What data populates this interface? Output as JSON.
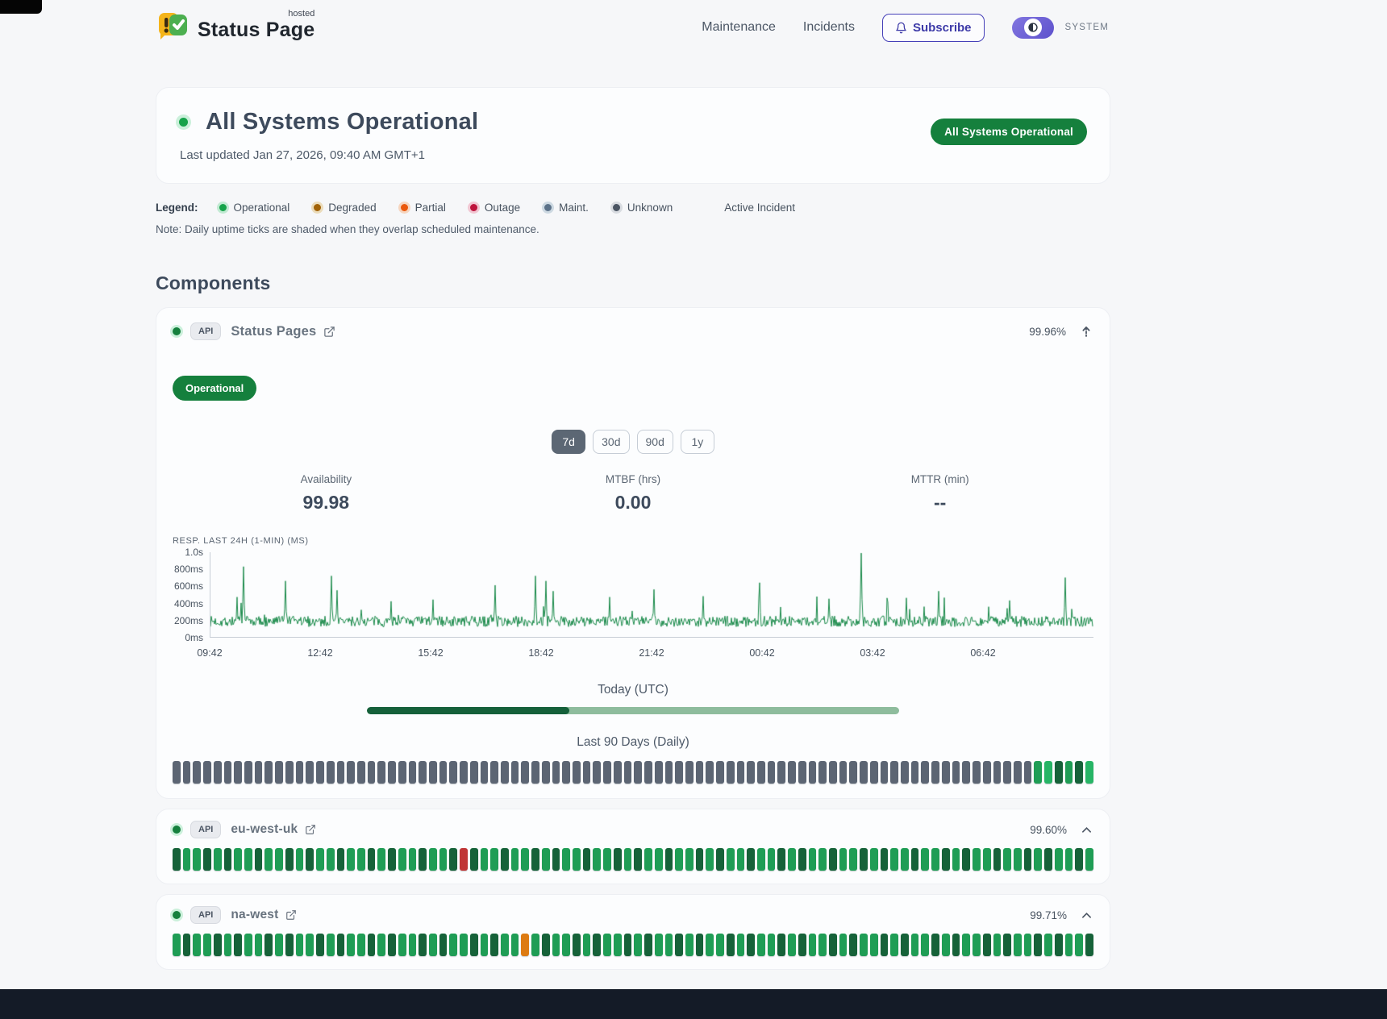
{
  "header": {
    "logo": {
      "brand": "Status Page",
      "superscript": "hosted"
    },
    "nav": [
      {
        "label": "Maintenance"
      },
      {
        "label": "Incidents"
      }
    ],
    "subscribe_label": "Subscribe",
    "theme_toggle_label": "SYSTEM"
  },
  "hero": {
    "title": "All Systems Operational",
    "last_updated": "Last updated Jan 27, 2026, 09:40 AM GMT+1",
    "badge": "All Systems Operational",
    "status_color": "#15803d"
  },
  "legend": {
    "label": "Legend:",
    "items": [
      {
        "label": "Operational",
        "color": "#16a34a",
        "ring": "rgba(34,197,94,.25)"
      },
      {
        "label": "Degraded",
        "color": "#a16207",
        "ring": "rgba(202,138,4,.25)"
      },
      {
        "label": "Partial",
        "color": "#ea580c",
        "ring": "rgba(249,115,22,.25)"
      },
      {
        "label": "Outage",
        "color": "#be123c",
        "ring": "rgba(225,29,72,.22)"
      },
      {
        "label": "Maint.",
        "color": "#5c7289",
        "ring": "rgba(100,140,170,.28)"
      },
      {
        "label": "Unknown",
        "color": "#4b5563",
        "ring": "rgba(107,114,128,.2)"
      }
    ],
    "active_incident_label": "Active Incident",
    "note": "Note: Daily uptime ticks are shaded when they overlap scheduled maintenance."
  },
  "components": {
    "heading": "Components",
    "expanded": {
      "type_badge": "API",
      "name": "Status Pages",
      "uptime_pct": "99.96%",
      "status_badge": "Operational",
      "ranges": [
        "7d",
        "30d",
        "90d",
        "1y"
      ],
      "active_range": "7d",
      "stats": [
        {
          "label": "Availability",
          "value": "99.98"
        },
        {
          "label": "MTBF (hrs)",
          "value": "0.00"
        },
        {
          "label": "MTTR (min)",
          "value": "--"
        }
      ],
      "today_label": "Today (UTC)",
      "today_progress": 0.38,
      "history_label": "Last 90 Days (Daily)",
      "ticks": {
        "length": 90,
        "pattern": [
          "x"
        ],
        "overrides": {
          "84": "g",
          "85": "b",
          "86": "d",
          "87": "g",
          "88": "d",
          "89": "b"
        }
      }
    },
    "rows": [
      {
        "type_badge": "API",
        "name": "eu-west-uk",
        "uptime_pct": "99.60%",
        "ticks": {
          "length": 90,
          "pattern": [
            "d",
            "g",
            "g",
            "d",
            "g",
            "d",
            "g",
            "g"
          ],
          "overrides": {
            "28": "r"
          }
        }
      },
      {
        "type_badge": "API",
        "name": "na-west",
        "uptime_pct": "99.71%",
        "ticks": {
          "length": 90,
          "pattern": [
            "g",
            "d",
            "g",
            "g",
            "d",
            "g",
            "d",
            "g",
            "g",
            "d"
          ],
          "overrides": {
            "34": "o"
          }
        }
      }
    ]
  },
  "tick_colors": {
    "x": "#5c6573",
    "d": "#166239",
    "g": "#1f9d55",
    "b": "#27b566",
    "r": "#c03636",
    "o": "#dd7b12"
  },
  "chart_data": {
    "type": "line",
    "title": "RESP. LAST 24H (1-MIN) (MS)",
    "series": [
      {
        "name": "response-time-ms",
        "color": "#1a8a4a"
      }
    ],
    "x_tick_labels": [
      "09:42",
      "12:42",
      "15:42",
      "18:42",
      "21:42",
      "00:42",
      "03:42",
      "06:42"
    ],
    "y_tick_labels": [
      "0ms",
      "200ms",
      "400ms",
      "600ms",
      "800ms",
      "1.0s"
    ],
    "ylim_ms": [
      0,
      1000
    ],
    "baseline_ms": [
      120,
      260
    ],
    "grid": false,
    "legend_position": "none",
    "spikes": [
      [
        0.03,
        470
      ],
      [
        0.037,
        830
      ],
      [
        0.085,
        660
      ],
      [
        0.137,
        720
      ],
      [
        0.143,
        550
      ],
      [
        0.205,
        420
      ],
      [
        0.252,
        440
      ],
      [
        0.322,
        610
      ],
      [
        0.368,
        720
      ],
      [
        0.38,
        660
      ],
      [
        0.388,
        540
      ],
      [
        0.452,
        470
      ],
      [
        0.502,
        560
      ],
      [
        0.558,
        480
      ],
      [
        0.622,
        640
      ],
      [
        0.7,
        450
      ],
      [
        0.737,
        990
      ],
      [
        0.788,
        460
      ],
      [
        0.825,
        540
      ],
      [
        0.905,
        430
      ],
      [
        0.968,
        700
      ]
    ],
    "seed": 7
  },
  "footer": {}
}
